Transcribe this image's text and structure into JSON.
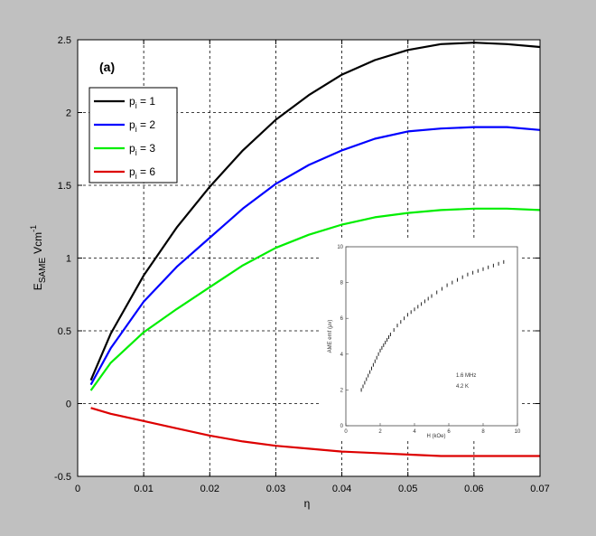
{
  "chart_data": {
    "type": "line",
    "panel_label": "(a)",
    "xlabel": "η",
    "ylabel": {
      "main": "E",
      "sub": "SAME",
      "unit": "Vcm",
      "exp": "-1"
    },
    "xlim": [
      0,
      0.07
    ],
    "ylim": [
      -0.5,
      2.5
    ],
    "x_ticks": [
      0,
      0.01,
      0.02,
      0.03,
      0.04,
      0.05,
      0.06,
      0.07
    ],
    "x_tick_labels": [
      "0",
      "0.01",
      "0.02",
      "0.03",
      "0.04",
      "0.05",
      "0.06",
      "0.07"
    ],
    "y_ticks": [
      -0.5,
      0,
      0.5,
      1,
      1.5,
      2,
      2.5
    ],
    "y_tick_labels": [
      "-0.5",
      "0",
      "0.5",
      "1",
      "1.5",
      "2",
      "2.5"
    ],
    "grid": true,
    "legend_position": "top-left",
    "x": [
      0.002,
      0.005,
      0.01,
      0.015,
      0.02,
      0.025,
      0.03,
      0.035,
      0.04,
      0.045,
      0.05,
      0.055,
      0.06,
      0.065,
      0.07
    ],
    "series": [
      {
        "name": "p = 1",
        "name_main": "p",
        "name_sub": "i",
        "name_rest": " = 1",
        "color": "#000000",
        "values": [
          0.16,
          0.48,
          0.88,
          1.21,
          1.49,
          1.74,
          1.95,
          2.12,
          2.26,
          2.36,
          2.43,
          2.47,
          2.48,
          2.47,
          2.45
        ]
      },
      {
        "name": "p = 2",
        "name_main": "p",
        "name_sub": "i",
        "name_rest": " = 2",
        "color": "#0000ff",
        "values": [
          0.13,
          0.38,
          0.7,
          0.94,
          1.14,
          1.34,
          1.51,
          1.64,
          1.74,
          1.82,
          1.87,
          1.89,
          1.9,
          1.9,
          1.88
        ]
      },
      {
        "name": "p = 3",
        "name_main": "p",
        "name_sub": "i",
        "name_rest": " = 3",
        "color": "#00ee00",
        "values": [
          0.09,
          0.28,
          0.49,
          0.65,
          0.8,
          0.95,
          1.07,
          1.16,
          1.23,
          1.28,
          1.31,
          1.33,
          1.34,
          1.34,
          1.33
        ]
      },
      {
        "name": "p = 6",
        "name_main": "p",
        "name_sub": "i",
        "name_rest": " = 6",
        "color": "#dd0000",
        "values": [
          -0.03,
          -0.07,
          -0.12,
          -0.17,
          -0.22,
          -0.26,
          -0.29,
          -0.31,
          -0.33,
          -0.34,
          -0.35,
          -0.36,
          -0.36,
          -0.36,
          -0.36
        ]
      }
    ],
    "inset": {
      "type": "scatter",
      "xlabel": "H (kOe)",
      "ylabel": "AME emf (μv)",
      "xlim": [
        0,
        10
      ],
      "ylim": [
        0,
        10
      ],
      "x_ticks": [
        0,
        2,
        4,
        6,
        8,
        10
      ],
      "x_tick_labels": [
        "0",
        "2",
        "4",
        "6",
        "8",
        "10"
      ],
      "y_ticks": [
        0,
        2,
        4,
        6,
        8,
        10
      ],
      "y_tick_labels": [
        "0",
        "2",
        "4",
        "6",
        "8",
        "10"
      ],
      "annotation_1": "1.6 MHz",
      "annotation_2": "4.2 K",
      "x": [
        0.9,
        1.0,
        1.1,
        1.2,
        1.3,
        1.4,
        1.5,
        1.6,
        1.7,
        1.8,
        1.9,
        2.0,
        2.1,
        2.2,
        2.3,
        2.4,
        2.5,
        2.6,
        2.8,
        3.0,
        3.2,
        3.4,
        3.6,
        3.8,
        4.0,
        4.2,
        4.4,
        4.6,
        4.8,
        5.0,
        5.3,
        5.6,
        5.9,
        6.2,
        6.5,
        6.8,
        7.1,
        7.4,
        7.7,
        8.0,
        8.3,
        8.6,
        8.9,
        9.2
      ],
      "y": [
        2.0,
        2.2,
        2.4,
        2.6,
        2.8,
        3.0,
        3.2,
        3.4,
        3.6,
        3.8,
        4.0,
        4.2,
        4.35,
        4.5,
        4.65,
        4.8,
        4.95,
        5.1,
        5.35,
        5.6,
        5.8,
        6.0,
        6.2,
        6.35,
        6.5,
        6.65,
        6.8,
        6.95,
        7.1,
        7.25,
        7.45,
        7.65,
        7.85,
        8.0,
        8.15,
        8.3,
        8.45,
        8.55,
        8.65,
        8.75,
        8.85,
        8.95,
        9.05,
        9.15
      ]
    }
  }
}
